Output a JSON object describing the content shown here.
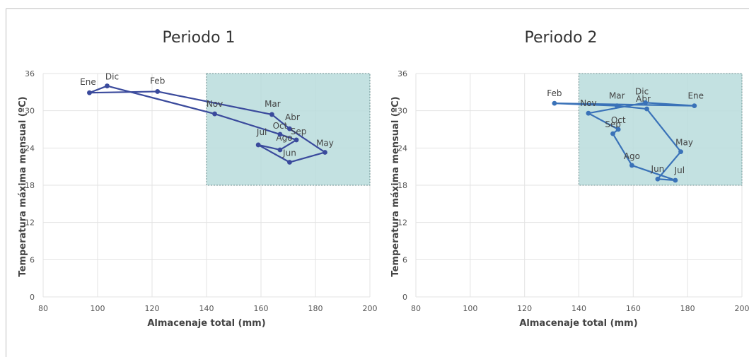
{
  "chart_data": [
    {
      "type": "line",
      "title": "Periodo 1",
      "xlabel": "Almacenaje total (mm)",
      "ylabel": "Temperatura máxima mensual (ºC)",
      "xlim": [
        80,
        200
      ],
      "ylim": [
        0,
        36
      ],
      "xticks": [
        80,
        100,
        120,
        140,
        160,
        180,
        200
      ],
      "yticks": [
        0,
        6,
        12,
        18,
        24,
        30,
        36
      ],
      "grid": true,
      "highlight_region": {
        "x": [
          140,
          200
        ],
        "y": [
          18,
          36
        ],
        "color": "#b8dcdc"
      },
      "line_color": "#3a4a9c",
      "series": [
        {
          "points": [
            {
              "label": "Ene",
              "x": 97,
              "y": 32.9
            },
            {
              "label": "Feb",
              "x": 122,
              "y": 33.1
            },
            {
              "label": "Mar",
              "x": 164,
              "y": 29.4
            },
            {
              "label": "Abr",
              "x": 170.5,
              "y": 27.1
            },
            {
              "label": "May",
              "x": 183.5,
              "y": 23.3
            },
            {
              "label": "Jun",
              "x": 170.5,
              "y": 21.7
            },
            {
              "label": "Jul",
              "x": 159,
              "y": 24.5
            },
            {
              "label": "Ago",
              "x": 167,
              "y": 23.7
            },
            {
              "label": "Sep",
              "x": 173,
              "y": 25.3
            },
            {
              "label": "Oct",
              "x": 167,
              "y": 26.2
            },
            {
              "label": "Nov",
              "x": 143,
              "y": 29.5
            },
            {
              "label": "Dic",
              "x": 103.5,
              "y": 34
            },
            {
              "label": "Ene",
              "x": 97,
              "y": 32.9
            }
          ]
        }
      ]
    },
    {
      "type": "line",
      "title": "Periodo 2",
      "xlabel": "Almacenaje total (mm)",
      "ylabel": "Temperatura máxima mensual (ºC)",
      "xlim": [
        80,
        200
      ],
      "ylim": [
        0,
        36
      ],
      "xticks": [
        80,
        100,
        120,
        140,
        160,
        180,
        200
      ],
      "yticks": [
        0,
        6,
        12,
        18,
        24,
        30,
        36
      ],
      "grid": true,
      "highlight_region": {
        "x": [
          140,
          200
        ],
        "y": [
          18,
          36
        ],
        "color": "#b8dcdc"
      },
      "line_color": "#3a72b8",
      "series": [
        {
          "points": [
            {
              "label": "Ene",
              "x": 182.5,
              "y": 30.8
            },
            {
              "label": "Feb",
              "x": 131,
              "y": 31.2
            },
            {
              "label": "Mar",
              "x": 154,
              "y": 30.8
            },
            {
              "label": "Abr",
              "x": 165,
              "y": 30.3
            },
            {
              "label": "May",
              "x": 177.5,
              "y": 23.4
            },
            {
              "label": "Jun",
              "x": 169,
              "y": 19
            },
            {
              "label": "Jul",
              "x": 175.5,
              "y": 18.8
            },
            {
              "label": "Ago",
              "x": 159.5,
              "y": 21.2
            },
            {
              "label": "Sep",
              "x": 152.5,
              "y": 26.3
            },
            {
              "label": "Oct",
              "x": 154.5,
              "y": 27
            },
            {
              "label": "Nov",
              "x": 143.5,
              "y": 29.6
            },
            {
              "label": "Dic",
              "x": 164.5,
              "y": 31.3
            },
            {
              "label": "Ene",
              "x": 182.5,
              "y": 30.8
            }
          ]
        }
      ]
    }
  ]
}
